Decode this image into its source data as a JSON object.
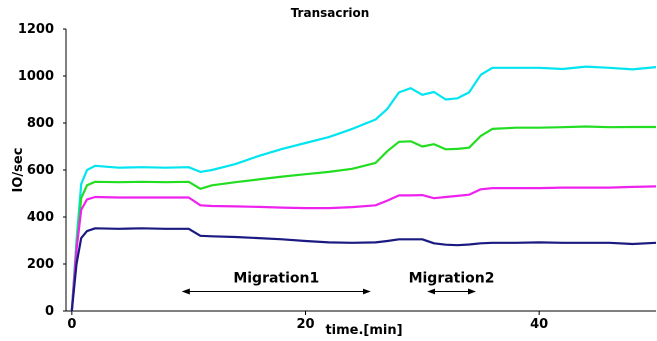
{
  "chart_data": {
    "type": "line",
    "title": "Transacrion",
    "xlabel": "time.[min]",
    "ylabel": "IO/sec",
    "xlim": [
      -0.5,
      50
    ],
    "ylim": [
      0,
      1200
    ],
    "xticks": [
      0,
      20,
      40
    ],
    "yticks": [
      0,
      200,
      400,
      600,
      800,
      1000,
      1200
    ],
    "grid": false,
    "legend": "none",
    "series": [
      {
        "color": "#00e5f0",
        "points": [
          [
            0,
            0
          ],
          [
            0.4,
            300
          ],
          [
            0.8,
            540
          ],
          [
            1.3,
            600
          ],
          [
            2,
            618
          ],
          [
            4,
            610
          ],
          [
            6,
            612
          ],
          [
            8,
            610
          ],
          [
            10,
            612
          ],
          [
            11,
            592
          ],
          [
            12,
            600
          ],
          [
            14,
            625
          ],
          [
            16,
            660
          ],
          [
            18,
            690
          ],
          [
            20,
            715
          ],
          [
            22,
            740
          ],
          [
            24,
            775
          ],
          [
            26,
            815
          ],
          [
            27,
            860
          ],
          [
            28,
            930
          ],
          [
            29,
            948
          ],
          [
            30,
            920
          ],
          [
            31,
            932
          ],
          [
            32,
            900
          ],
          [
            33,
            905
          ],
          [
            34,
            930
          ],
          [
            35,
            1005
          ],
          [
            36,
            1035
          ],
          [
            38,
            1035
          ],
          [
            40,
            1035
          ],
          [
            42,
            1030
          ],
          [
            44,
            1040
          ],
          [
            46,
            1035
          ],
          [
            48,
            1028
          ],
          [
            50,
            1038
          ]
        ]
      },
      {
        "color": "#22dd22",
        "points": [
          [
            0,
            0
          ],
          [
            0.4,
            280
          ],
          [
            0.8,
            480
          ],
          [
            1.3,
            535
          ],
          [
            2,
            550
          ],
          [
            4,
            548
          ],
          [
            6,
            550
          ],
          [
            8,
            548
          ],
          [
            10,
            550
          ],
          [
            11,
            520
          ],
          [
            12,
            535
          ],
          [
            14,
            548
          ],
          [
            16,
            560
          ],
          [
            18,
            572
          ],
          [
            20,
            582
          ],
          [
            22,
            592
          ],
          [
            24,
            605
          ],
          [
            26,
            630
          ],
          [
            27,
            680
          ],
          [
            28,
            720
          ],
          [
            29,
            722
          ],
          [
            30,
            700
          ],
          [
            31,
            710
          ],
          [
            32,
            688
          ],
          [
            33,
            690
          ],
          [
            34,
            695
          ],
          [
            35,
            745
          ],
          [
            36,
            775
          ],
          [
            38,
            780
          ],
          [
            40,
            780
          ],
          [
            42,
            782
          ],
          [
            44,
            785
          ],
          [
            46,
            782
          ],
          [
            48,
            783
          ],
          [
            50,
            783
          ]
        ]
      },
      {
        "color": "#ee22ee",
        "points": [
          [
            0,
            0
          ],
          [
            0.4,
            260
          ],
          [
            0.8,
            430
          ],
          [
            1.3,
            475
          ],
          [
            2,
            485
          ],
          [
            4,
            483
          ],
          [
            6,
            483
          ],
          [
            8,
            483
          ],
          [
            10,
            483
          ],
          [
            11,
            450
          ],
          [
            12,
            447
          ],
          [
            14,
            445
          ],
          [
            16,
            443
          ],
          [
            18,
            440
          ],
          [
            20,
            438
          ],
          [
            22,
            438
          ],
          [
            24,
            442
          ],
          [
            26,
            450
          ],
          [
            27,
            470
          ],
          [
            28,
            492
          ],
          [
            29,
            492
          ],
          [
            30,
            493
          ],
          [
            31,
            480
          ],
          [
            32,
            485
          ],
          [
            33,
            490
          ],
          [
            34,
            495
          ],
          [
            35,
            518
          ],
          [
            36,
            523
          ],
          [
            38,
            523
          ],
          [
            40,
            523
          ],
          [
            42,
            525
          ],
          [
            44,
            525
          ],
          [
            46,
            525
          ],
          [
            48,
            528
          ],
          [
            50,
            530
          ]
        ]
      },
      {
        "color": "#1a1a80",
        "points": [
          [
            0,
            0
          ],
          [
            0.4,
            200
          ],
          [
            0.8,
            310
          ],
          [
            1.3,
            340
          ],
          [
            2,
            352
          ],
          [
            4,
            350
          ],
          [
            6,
            352
          ],
          [
            8,
            350
          ],
          [
            10,
            350
          ],
          [
            11,
            320
          ],
          [
            12,
            318
          ],
          [
            14,
            315
          ],
          [
            16,
            310
          ],
          [
            18,
            305
          ],
          [
            20,
            298
          ],
          [
            22,
            292
          ],
          [
            24,
            290
          ],
          [
            26,
            292
          ],
          [
            27,
            298
          ],
          [
            28,
            305
          ],
          [
            29,
            305
          ],
          [
            30,
            305
          ],
          [
            31,
            288
          ],
          [
            32,
            282
          ],
          [
            33,
            280
          ],
          [
            34,
            283
          ],
          [
            35,
            288
          ],
          [
            36,
            290
          ],
          [
            38,
            290
          ],
          [
            40,
            292
          ],
          [
            42,
            290
          ],
          [
            44,
            290
          ],
          [
            46,
            290
          ],
          [
            48,
            285
          ],
          [
            50,
            290
          ]
        ]
      }
    ],
    "annotations": [
      {
        "label": "Migration1",
        "x_start": 9.5,
        "x_end": 25.5,
        "y": 100
      },
      {
        "label": "Migration2",
        "x_start": 30.5,
        "x_end": 34.5,
        "y": 100
      }
    ]
  }
}
